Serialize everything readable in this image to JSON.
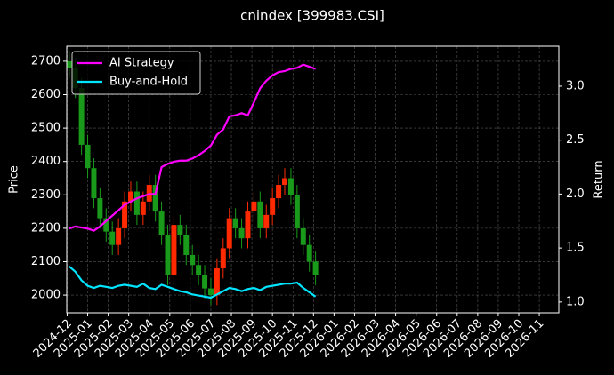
{
  "chart_data": {
    "type": "candlestick",
    "title": "cnindex [399983.CSI]",
    "ylabel": "Price",
    "y2label": "Return",
    "x": [
      0.1,
      0.4,
      0.7,
      1.0,
      1.3,
      1.6,
      1.9,
      2.2,
      2.5,
      2.8,
      3.1,
      3.4,
      3.7,
      4.0,
      4.3,
      4.6,
      4.9,
      5.2,
      5.5,
      5.8,
      6.1,
      6.4,
      6.7,
      7.0,
      7.3,
      7.6,
      7.9,
      8.2,
      8.5,
      8.8,
      9.1,
      9.4,
      9.7,
      10.0,
      10.3,
      10.6,
      10.9,
      11.2,
      11.5,
      11.8,
      12.1
    ],
    "candles": {
      "open": [
        2700,
        2680,
        2620,
        2450,
        2380,
        2290,
        2230,
        2190,
        2150,
        2200,
        2280,
        2310,
        2240,
        2280,
        2330,
        2250,
        2180,
        2060,
        2210,
        2180,
        2120,
        2090,
        2060,
        2020,
        2000,
        2080,
        2140,
        2230,
        2200,
        2170,
        2250,
        2280,
        2200,
        2240,
        2290,
        2330,
        2350,
        2300,
        2200,
        2150,
        2100
      ],
      "high": [
        2730,
        2710,
        2650,
        2480,
        2410,
        2320,
        2260,
        2220,
        2230,
        2310,
        2340,
        2340,
        2310,
        2360,
        2360,
        2280,
        2210,
        2240,
        2240,
        2210,
        2150,
        2120,
        2090,
        2050,
        2110,
        2170,
        2260,
        2260,
        2230,
        2280,
        2310,
        2310,
        2270,
        2320,
        2360,
        2380,
        2380,
        2330,
        2230,
        2180,
        2130
      ],
      "low": [
        2650,
        2590,
        2420,
        2350,
        2260,
        2200,
        2160,
        2120,
        2120,
        2170,
        2250,
        2210,
        2210,
        2250,
        2220,
        2150,
        2030,
        2030,
        2150,
        2090,
        2060,
        2030,
        1990,
        1970,
        1970,
        2050,
        2110,
        2170,
        2140,
        2140,
        2220,
        2170,
        2170,
        2210,
        2260,
        2300,
        2270,
        2170,
        2120,
        2070,
        2030
      ],
      "close": [
        2680,
        2620,
        2450,
        2380,
        2290,
        2230,
        2190,
        2150,
        2200,
        2280,
        2310,
        2240,
        2280,
        2330,
        2250,
        2180,
        2060,
        2210,
        2180,
        2120,
        2090,
        2060,
        2020,
        2000,
        2080,
        2140,
        2230,
        2200,
        2170,
        2250,
        2280,
        2200,
        2240,
        2290,
        2330,
        2350,
        2300,
        2200,
        2150,
        2100,
        2060
      ]
    },
    "up_color": "#ff2a00",
    "down_color": "#1a9a1a",
    "series": [
      {
        "name": "AI Strategy",
        "color": "#ff00ff",
        "axis": "y2",
        "values": [
          1.68,
          1.7,
          1.69,
          1.68,
          1.66,
          1.7,
          1.75,
          1.8,
          1.85,
          1.9,
          1.93,
          1.96,
          1.98,
          2.0,
          2.0,
          2.25,
          2.28,
          2.3,
          2.31,
          2.31,
          2.33,
          2.36,
          2.4,
          2.45,
          2.55,
          2.6,
          2.72,
          2.73,
          2.75,
          2.73,
          2.85,
          2.98,
          3.05,
          3.1,
          3.13,
          3.14,
          3.16,
          3.17,
          3.2,
          3.18,
          3.16
        ]
      },
      {
        "name": "Buy-and-Hold",
        "color": "#00e5ff",
        "axis": "y2",
        "values": [
          1.33,
          1.28,
          1.2,
          1.15,
          1.13,
          1.15,
          1.14,
          1.13,
          1.15,
          1.16,
          1.15,
          1.14,
          1.17,
          1.13,
          1.12,
          1.16,
          1.14,
          1.12,
          1.1,
          1.09,
          1.07,
          1.06,
          1.05,
          1.04,
          1.07,
          1.1,
          1.13,
          1.12,
          1.1,
          1.12,
          1.13,
          1.11,
          1.14,
          1.15,
          1.16,
          1.17,
          1.17,
          1.18,
          1.13,
          1.09,
          1.05
        ]
      }
    ],
    "xlim": [
      -0.02,
      23.95
    ],
    "xticks": [
      {
        "value": 0,
        "label": "2024-12"
      },
      {
        "value": 1,
        "label": "2025-01"
      },
      {
        "value": 2,
        "label": "2025-02"
      },
      {
        "value": 3,
        "label": "2025-03"
      },
      {
        "value": 4,
        "label": "2025-04"
      },
      {
        "value": 5,
        "label": "2025-05"
      },
      {
        "value": 6,
        "label": "2025-06"
      },
      {
        "value": 7,
        "label": "2025-07"
      },
      {
        "value": 8,
        "label": "2025-08"
      },
      {
        "value": 9,
        "label": "2025-09"
      },
      {
        "value": 10,
        "label": "2025-10"
      },
      {
        "value": 11,
        "label": "2025-11"
      },
      {
        "value": 12,
        "label": "2025-12"
      },
      {
        "value": 13,
        "label": "2026-01"
      },
      {
        "value": 14,
        "label": "2026-02"
      },
      {
        "value": 15,
        "label": "2026-03"
      },
      {
        "value": 16,
        "label": "2026-04"
      },
      {
        "value": 17,
        "label": "2026-05"
      },
      {
        "value": 18,
        "label": "2026-06"
      },
      {
        "value": 19,
        "label": "2026-07"
      },
      {
        "value": 20,
        "label": "2026-08"
      },
      {
        "value": 21,
        "label": "2026-09"
      },
      {
        "value": 22,
        "label": "2026-10"
      },
      {
        "value": 23,
        "label": "2026-11"
      }
    ],
    "ylim": [
      1947,
      2745
    ],
    "yticks": [
      2000,
      2100,
      2200,
      2300,
      2400,
      2500,
      2600,
      2700
    ],
    "y2lim": [
      0.9,
      3.37
    ],
    "y2ticks": [
      {
        "value": 1,
        "label": "1.0"
      },
      1.5,
      {
        "value": 2,
        "label": "2.0"
      },
      2.5,
      {
        "value": 3,
        "label": "3.0"
      }
    ],
    "grid": true,
    "legend": "upper left"
  }
}
